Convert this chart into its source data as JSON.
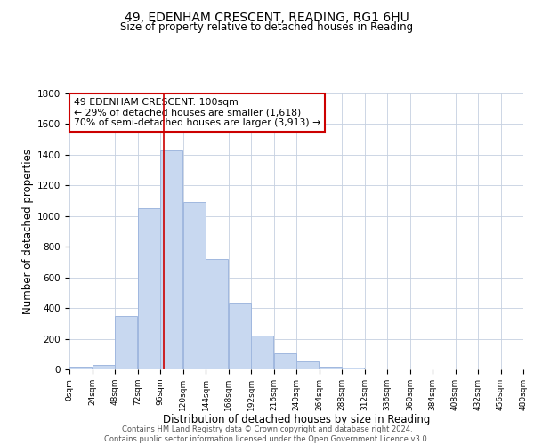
{
  "title": "49, EDENHAM CRESCENT, READING, RG1 6HU",
  "subtitle": "Size of property relative to detached houses in Reading",
  "xlabel": "Distribution of detached houses by size in Reading",
  "ylabel": "Number of detached properties",
  "bar_color": "#c8d8f0",
  "bar_edge_color": "#a0b8df",
  "bin_edges": [
    0,
    24,
    48,
    72,
    96,
    120,
    144,
    168,
    192,
    216,
    240,
    264,
    288,
    312,
    336,
    360,
    384,
    408,
    432,
    456,
    480
  ],
  "bar_heights": [
    15,
    30,
    350,
    1050,
    1430,
    1090,
    720,
    430,
    220,
    105,
    55,
    20,
    10,
    2,
    1,
    0,
    0,
    0,
    0,
    0
  ],
  "ylim": [
    0,
    1800
  ],
  "yticks": [
    0,
    200,
    400,
    600,
    800,
    1000,
    1200,
    1400,
    1600,
    1800
  ],
  "tick_labels": [
    "0sqm",
    "24sqm",
    "48sqm",
    "72sqm",
    "96sqm",
    "120sqm",
    "144sqm",
    "168sqm",
    "192sqm",
    "216sqm",
    "240sqm",
    "264sqm",
    "288sqm",
    "312sqm",
    "336sqm",
    "360sqm",
    "384sqm",
    "408sqm",
    "432sqm",
    "456sqm",
    "480sqm"
  ],
  "vline_x": 100,
  "vline_color": "#cc0000",
  "annotation_text": "49 EDENHAM CRESCENT: 100sqm\n← 29% of detached houses are smaller (1,618)\n70% of semi-detached houses are larger (3,913) →",
  "annotation_box_edge": "#cc0000",
  "footer_line1": "Contains HM Land Registry data © Crown copyright and database right 2024.",
  "footer_line2": "Contains public sector information licensed under the Open Government Licence v3.0.",
  "background_color": "#ffffff",
  "grid_color": "#c5d0e0"
}
